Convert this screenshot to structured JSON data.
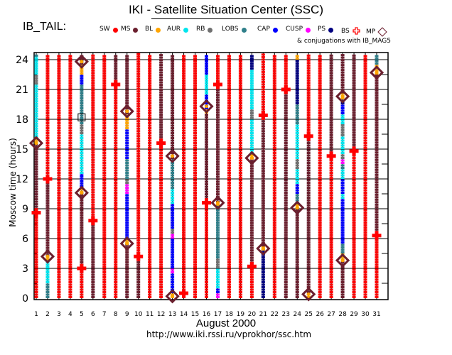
{
  "header": {
    "title": "IKI - Satellite Situation Center (SSC)",
    "satellite": "IB_TAIL:",
    "conjugations_note": "& conjugations with IB_MAG5"
  },
  "footer": {
    "month_label": "August   2000",
    "url_text": "http://www.iki.rssi.ru/vprokhor/ssc.htm"
  },
  "chart_data": {
    "type": "scatter",
    "title": "IKI - Satellite Situation Center (SSC)",
    "xlabel": "August   2000",
    "ylabel": "Moscow time (hours)",
    "xlim": [
      0.5,
      31.5
    ],
    "ylim": [
      0,
      24.5
    ],
    "x_ticks": [
      "1",
      "2",
      "3",
      "4",
      "5",
      "6",
      "7",
      "8",
      "9",
      "10",
      "11",
      "12",
      "13",
      "14",
      "15",
      "16",
      "17",
      "18",
      "19",
      "20",
      "21",
      "22",
      "23",
      "24",
      "25",
      "26",
      "27",
      "28",
      "29",
      "30",
      "31"
    ],
    "y_ticks": [
      "0",
      "3",
      "6",
      "9",
      "12",
      "15",
      "18",
      "21",
      "24"
    ],
    "grid": true,
    "legend": [
      {
        "key": "SW",
        "label": "SW",
        "color": "#ff0000",
        "marker": "dot"
      },
      {
        "key": "MS",
        "label": "MS",
        "color": "#6b1f2e",
        "marker": "dot"
      },
      {
        "key": "BL",
        "label": "BL",
        "color": "#ffa500",
        "marker": "dot"
      },
      {
        "key": "AUR",
        "label": "AUR",
        "color": "#00e5ee",
        "marker": "dot"
      },
      {
        "key": "RB",
        "label": "RB",
        "color": "#707070",
        "marker": "dot"
      },
      {
        "key": "LOBS",
        "label": "LOBS",
        "color": "#2f7f8a",
        "marker": "dot"
      },
      {
        "key": "CAP",
        "label": "CAP",
        "color": "#0000ff",
        "marker": "dot"
      },
      {
        "key": "CUSP",
        "label": "CUSP",
        "color": "#ff00ff",
        "marker": "dot"
      },
      {
        "key": "PS",
        "label": "PS",
        "color": "#000080",
        "marker": "dot"
      },
      {
        "key": "BS",
        "label": "BS",
        "color": "#ff0000",
        "marker": "cross"
      },
      {
        "key": "MP",
        "label": "MP",
        "color": "#6b1f2e",
        "marker": "diamond"
      }
    ],
    "days": [
      {
        "day": 1,
        "segments": [
          [
            0,
            8.6,
            "SW"
          ],
          [
            8.6,
            15.6,
            "MS"
          ],
          [
            15.6,
            16.2,
            "BL"
          ],
          [
            16.2,
            21.5,
            "AUR"
          ],
          [
            21.5,
            22.5,
            "RB"
          ],
          [
            22.5,
            24.3,
            "AUR"
          ],
          [
            24.3,
            24.5,
            "LOBS"
          ]
        ],
        "bs": [
          8.6
        ],
        "mp": [
          15.6
        ]
      },
      {
        "day": 2,
        "segments": [
          [
            0,
            1.5,
            "LOBS"
          ],
          [
            1.5,
            3.8,
            "AUR"
          ],
          [
            3.8,
            4.2,
            "BL"
          ],
          [
            4.2,
            12,
            "MS"
          ],
          [
            12,
            24.5,
            "SW"
          ]
        ],
        "bs": [
          12
        ],
        "mp": [
          4.2
        ]
      },
      {
        "day": 3,
        "segments": [
          [
            0,
            24.5,
            "SW"
          ]
        ],
        "bs": [],
        "mp": []
      },
      {
        "day": 4,
        "segments": [
          [
            0,
            24.5,
            "SW"
          ]
        ],
        "bs": [],
        "mp": []
      },
      {
        "day": 5,
        "segments": [
          [
            0,
            3,
            "SW"
          ],
          [
            3,
            10.6,
            "MS"
          ],
          [
            10.6,
            11.2,
            "BL"
          ],
          [
            11.2,
            12.5,
            "CAP"
          ],
          [
            12.5,
            16.5,
            "AUR"
          ],
          [
            16.5,
            17.5,
            "RB"
          ],
          [
            17.5,
            21.5,
            "LOBS"
          ],
          [
            21.5,
            22.5,
            "CAP"
          ],
          [
            22.5,
            23.5,
            "BL"
          ],
          [
            23.5,
            24.5,
            "MS"
          ]
        ],
        "bs": [
          3
        ],
        "mp": [
          10.6,
          23.8
        ],
        "conj": [
          18.2
        ]
      },
      {
        "day": 6,
        "segments": [
          [
            0,
            7.8,
            "MS"
          ],
          [
            7.8,
            24.5,
            "SW"
          ]
        ],
        "bs": [
          7.8
        ],
        "mp": []
      },
      {
        "day": 7,
        "segments": [
          [
            0,
            24.5,
            "SW"
          ]
        ],
        "bs": [],
        "mp": []
      },
      {
        "day": 8,
        "segments": [
          [
            0,
            21.5,
            "SW"
          ],
          [
            21.5,
            24.5,
            "MS"
          ]
        ],
        "bs": [
          21.5
        ],
        "mp": []
      },
      {
        "day": 9,
        "segments": [
          [
            0,
            5.5,
            "MS"
          ],
          [
            5.5,
            6,
            "BL"
          ],
          [
            6,
            10.5,
            "CAP"
          ],
          [
            10.5,
            11.5,
            "CUSP"
          ],
          [
            11.5,
            12,
            "RB"
          ],
          [
            12,
            14,
            "LOBS"
          ],
          [
            14,
            17,
            "CAP"
          ],
          [
            17,
            18.5,
            "BL"
          ],
          [
            18.5,
            24.5,
            "MS"
          ]
        ],
        "bs": [],
        "mp": [
          5.5,
          18.8
        ]
      },
      {
        "day": 10,
        "segments": [
          [
            0,
            4.2,
            "MS"
          ],
          [
            4.2,
            24.5,
            "SW"
          ]
        ],
        "bs": [
          4.2
        ],
        "mp": []
      },
      {
        "day": 11,
        "segments": [
          [
            0,
            24.5,
            "SW"
          ]
        ],
        "bs": [],
        "mp": []
      },
      {
        "day": 12,
        "segments": [
          [
            0,
            15.6,
            "SW"
          ],
          [
            15.6,
            24.5,
            "MS"
          ]
        ],
        "bs": [
          15.6
        ],
        "mp": []
      },
      {
        "day": 13,
        "segments": [
          [
            0,
            0.5,
            "BL"
          ],
          [
            0.5,
            2.5,
            "CAP"
          ],
          [
            2.5,
            3,
            "CUSP"
          ],
          [
            3,
            6,
            "CAP"
          ],
          [
            6,
            6.5,
            "CUSP"
          ],
          [
            6.5,
            7,
            "RB"
          ],
          [
            7,
            9.5,
            "CAP"
          ],
          [
            9.5,
            11,
            "AUR"
          ],
          [
            11,
            14,
            "LOBS"
          ],
          [
            14,
            24.5,
            "MS"
          ]
        ],
        "bs": [],
        "mp": [
          0.2,
          14.3
        ]
      },
      {
        "day": 14,
        "segments": [
          [
            0,
            0.5,
            "SW"
          ],
          [
            0.5,
            24.5,
            "SW"
          ]
        ],
        "bs": [
          0.5
        ],
        "mp": []
      },
      {
        "day": 15,
        "segments": [
          [
            0,
            24.5,
            "SW"
          ]
        ],
        "bs": [],
        "mp": []
      },
      {
        "day": 16,
        "segments": [
          [
            0,
            9.6,
            "SW"
          ],
          [
            9.6,
            18.6,
            "MS"
          ],
          [
            18.6,
            19,
            "BL"
          ],
          [
            19,
            20.5,
            "CAP"
          ],
          [
            20.5,
            22.5,
            "AUR"
          ],
          [
            22.5,
            24.5,
            "CAP"
          ]
        ],
        "bs": [
          9.6
        ],
        "mp": [
          19.3
        ]
      },
      {
        "day": 17,
        "segments": [
          [
            0,
            0.5,
            "CUSP"
          ],
          [
            0.5,
            1,
            "CAP"
          ],
          [
            1,
            3,
            "AUR"
          ],
          [
            3,
            4,
            "RB"
          ],
          [
            4,
            9.3,
            "LOBS"
          ],
          [
            9.3,
            9.6,
            "BL"
          ],
          [
            9.6,
            21.5,
            "MS"
          ],
          [
            21.5,
            24.5,
            "SW"
          ]
        ],
        "bs": [
          21.5
        ],
        "mp": [
          9.6
        ]
      },
      {
        "day": 18,
        "segments": [
          [
            0,
            24.5,
            "SW"
          ]
        ],
        "bs": [],
        "mp": []
      },
      {
        "day": 19,
        "segments": [
          [
            0,
            24.5,
            "SW"
          ]
        ],
        "bs": [],
        "mp": []
      },
      {
        "day": 20,
        "segments": [
          [
            0,
            3.2,
            "SW"
          ],
          [
            3.2,
            14,
            "MS"
          ],
          [
            14,
            14.5,
            "BL"
          ],
          [
            14.5,
            18,
            "AUR"
          ],
          [
            18,
            19,
            "RB"
          ],
          [
            19,
            23,
            "AUR"
          ],
          [
            23,
            24.5,
            "PS"
          ]
        ],
        "bs": [
          3.2
        ],
        "mp": [
          14.1
        ]
      },
      {
        "day": 21,
        "segments": [
          [
            0,
            4.8,
            "PS"
          ],
          [
            4.8,
            5.2,
            "BL"
          ],
          [
            5.2,
            18.4,
            "MS"
          ],
          [
            18.4,
            24.5,
            "SW"
          ]
        ],
        "bs": [
          18.4
        ],
        "mp": [
          5
        ]
      },
      {
        "day": 22,
        "segments": [
          [
            0,
            24.5,
            "SW"
          ]
        ],
        "bs": [],
        "mp": []
      },
      {
        "day": 23,
        "segments": [
          [
            0,
            21,
            "MS"
          ],
          [
            21,
            24.5,
            "SW"
          ]
        ],
        "bs": [
          21
        ],
        "mp": []
      },
      {
        "day": 24,
        "segments": [
          [
            0,
            9,
            "MS"
          ],
          [
            9,
            9.5,
            "BL"
          ],
          [
            9.5,
            10.5,
            "LOBS"
          ],
          [
            10.5,
            11.5,
            "CAP"
          ],
          [
            11.5,
            13,
            "AUR"
          ],
          [
            13,
            14,
            "RB"
          ],
          [
            14,
            17.5,
            "AUR"
          ],
          [
            17.5,
            19.5,
            "LOBS"
          ],
          [
            19.5,
            24,
            "PS"
          ],
          [
            24,
            24.5,
            "BL"
          ]
        ],
        "bs": [],
        "mp": [
          9.1
        ]
      },
      {
        "day": 25,
        "segments": [
          [
            0,
            0.5,
            "BL"
          ],
          [
            0.5,
            16.3,
            "MS"
          ],
          [
            16.3,
            24.5,
            "SW"
          ]
        ],
        "bs": [
          16.3
        ],
        "mp": [
          0.4
        ]
      },
      {
        "day": 26,
        "segments": [
          [
            0,
            24.5,
            "SW"
          ]
        ],
        "bs": [],
        "mp": []
      },
      {
        "day": 27,
        "segments": [
          [
            0,
            14.3,
            "SW"
          ],
          [
            14.3,
            24.5,
            "MS"
          ]
        ],
        "bs": [
          14.3
        ],
        "mp": []
      },
      {
        "day": 28,
        "segments": [
          [
            0,
            3.8,
            "MS"
          ],
          [
            3.8,
            4.5,
            "BL"
          ],
          [
            4.5,
            5.5,
            "LOBS"
          ],
          [
            5.5,
            10,
            "CAP"
          ],
          [
            10,
            10.5,
            "AUR"
          ],
          [
            10.5,
            12,
            "CAP"
          ],
          [
            12,
            13,
            "AUR"
          ],
          [
            13,
            13.5,
            "LOBS"
          ],
          [
            13.5,
            14,
            "CUSP"
          ],
          [
            14,
            14.5,
            "RB"
          ],
          [
            14.5,
            16.3,
            "AUR"
          ],
          [
            16.3,
            17.5,
            "RB"
          ],
          [
            17.5,
            18.5,
            "AUR"
          ],
          [
            18.5,
            19.5,
            "CAP"
          ],
          [
            19.5,
            20,
            "PS"
          ],
          [
            20,
            20.6,
            "BL"
          ],
          [
            20.6,
            24.5,
            "MS"
          ]
        ],
        "bs": [],
        "mp": [
          3.8,
          20.3
        ]
      },
      {
        "day": 29,
        "segments": [
          [
            0,
            14.8,
            "SW"
          ],
          [
            14.8,
            24.5,
            "MS"
          ]
        ],
        "bs": [
          14.8
        ],
        "mp": []
      },
      {
        "day": 30,
        "segments": [
          [
            0,
            24.5,
            "SW"
          ]
        ],
        "bs": [],
        "mp": []
      },
      {
        "day": 31,
        "segments": [
          [
            0,
            6.3,
            "SW"
          ],
          [
            6.3,
            22.5,
            "MS"
          ],
          [
            22.5,
            23.5,
            "BL"
          ],
          [
            23.5,
            24.5,
            "LOBS"
          ]
        ],
        "bs": [
          6.3
        ],
        "mp": [
          22.7
        ]
      }
    ]
  }
}
